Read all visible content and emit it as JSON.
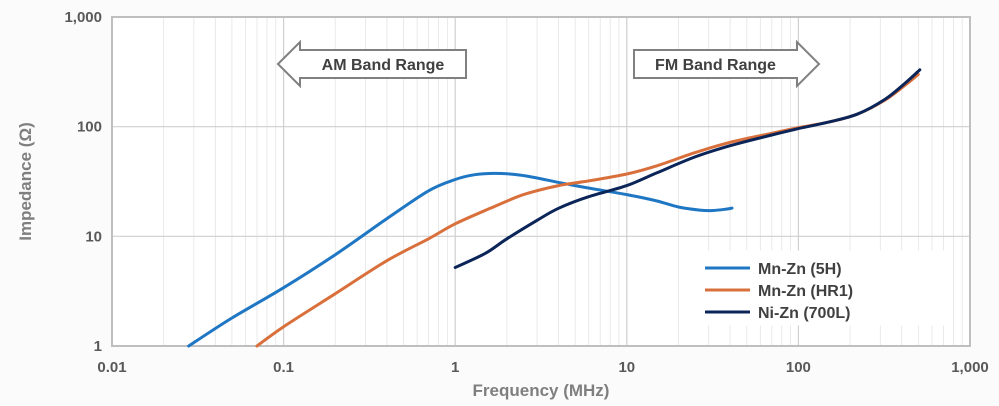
{
  "chart_data": {
    "type": "line",
    "xlabel": "Frequency (MHz)",
    "ylabel": "Impedance (Ω)",
    "x_scale": "log",
    "y_scale": "log",
    "xlim": [
      0.01,
      1000
    ],
    "ylim": [
      1,
      1000
    ],
    "x_ticks": [
      "0.01",
      "0.1",
      "1",
      "10",
      "100",
      "1,000"
    ],
    "y_ticks": [
      "1",
      "10",
      "100",
      "1,000"
    ],
    "grid": true,
    "legend_position": "bottom-right",
    "annotations": {
      "am": "AM Band Range",
      "fm": "FM Band Range"
    },
    "series": [
      {
        "name": "Mn-Zn (5H)",
        "color": "#1f77c4",
        "points": [
          [
            0.028,
            1.0
          ],
          [
            0.05,
            1.8
          ],
          [
            0.1,
            3.4
          ],
          [
            0.2,
            6.8
          ],
          [
            0.4,
            14.5
          ],
          [
            0.7,
            26
          ],
          [
            1.0,
            33
          ],
          [
            1.3,
            36.5
          ],
          [
            1.7,
            37.5
          ],
          [
            2.3,
            36.5
          ],
          [
            3.0,
            34
          ],
          [
            5.0,
            29
          ],
          [
            10,
            24
          ],
          [
            15,
            21
          ],
          [
            20,
            18.5
          ],
          [
            27,
            17.3
          ],
          [
            32,
            17.2
          ],
          [
            38,
            17.7
          ],
          [
            41,
            18.1
          ]
        ]
      },
      {
        "name": "Mn-Zn (HR1)",
        "color": "#d9703c",
        "points": [
          [
            0.07,
            1.0
          ],
          [
            0.1,
            1.5
          ],
          [
            0.2,
            3.0
          ],
          [
            0.4,
            6.0
          ],
          [
            0.7,
            9.5
          ],
          [
            1.0,
            13
          ],
          [
            1.6,
            18
          ],
          [
            2.5,
            24
          ],
          [
            4.0,
            29
          ],
          [
            6.0,
            32
          ],
          [
            10,
            37
          ],
          [
            15,
            44
          ],
          [
            25,
            58
          ],
          [
            40,
            72
          ],
          [
            70,
            87
          ],
          [
            100,
            98
          ],
          [
            150,
            110
          ],
          [
            220,
            130
          ],
          [
            320,
            175
          ],
          [
            420,
            240
          ],
          [
            500,
            300
          ]
        ]
      },
      {
        "name": "Ni-Zn (700L)",
        "color": "#0b2559",
        "points": [
          [
            1.0,
            5.2
          ],
          [
            1.5,
            7.0
          ],
          [
            2.0,
            9.5
          ],
          [
            3.0,
            14
          ],
          [
            4.0,
            18
          ],
          [
            6.0,
            23
          ],
          [
            10,
            29
          ],
          [
            15,
            38
          ],
          [
            25,
            53
          ],
          [
            40,
            67
          ],
          [
            70,
            84
          ],
          [
            100,
            96
          ],
          [
            150,
            110
          ],
          [
            220,
            130
          ],
          [
            320,
            178
          ],
          [
            420,
            250
          ],
          [
            510,
            330
          ]
        ]
      }
    ]
  }
}
